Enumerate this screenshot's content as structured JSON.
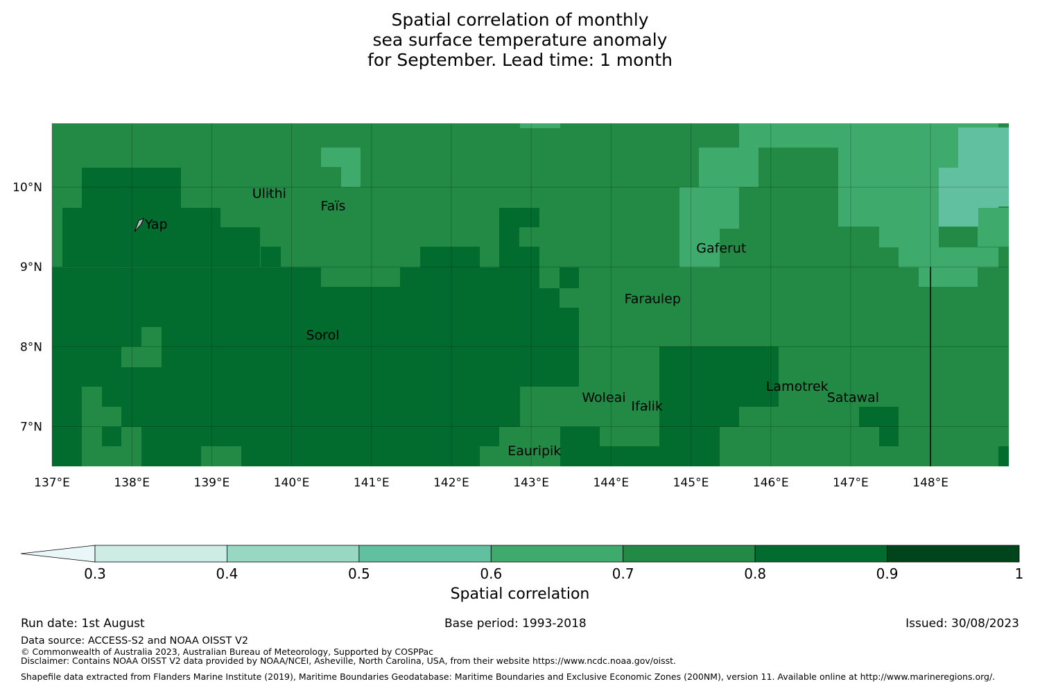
{
  "title": {
    "line1": "Spatial correlation of monthly",
    "line2": "sea surface temperature anomaly",
    "line3": "for September. Lead time: 1 month"
  },
  "map": {
    "extent": {
      "lon": [
        137.0,
        148.98
      ],
      "lat": [
        6.5,
        10.8
      ]
    },
    "lon_ticks": [
      "137°E",
      "138°E",
      "139°E",
      "140°E",
      "141°E",
      "142°E",
      "143°E",
      "144°E",
      "145°E",
      "146°E",
      "147°E",
      "148°E"
    ],
    "lat_ticks": [
      "10°N",
      "9°N",
      "8°N",
      "7°N"
    ],
    "eez_boundary": {
      "lon": 148.0,
      "lat_from": 6.5,
      "lat_to": 9.0
    },
    "islands": [
      {
        "name": "Ulithi",
        "lon": 139.72,
        "lat": 9.92
      },
      {
        "name": "Faïs",
        "lon": 140.52,
        "lat": 9.76
      },
      {
        "name": "Yap",
        "lon": 138.13,
        "lat": 9.53
      },
      {
        "name": "Gaferut",
        "lon": 145.38,
        "lat": 9.23
      },
      {
        "name": "Faraulep",
        "lon": 144.52,
        "lat": 8.6
      },
      {
        "name": "Sorol",
        "lon": 140.39,
        "lat": 8.14
      },
      {
        "name": "Woleai",
        "lon": 143.91,
        "lat": 7.36
      },
      {
        "name": "Ifalik",
        "lon": 144.45,
        "lat": 7.25
      },
      {
        "name": "Lamotrek",
        "lon": 146.33,
        "lat": 7.5
      },
      {
        "name": "Satawal",
        "lon": 147.03,
        "lat": 7.36
      },
      {
        "name": "Eauripik",
        "lon": 143.04,
        "lat": 6.69
      }
    ]
  },
  "colorbar": {
    "label": "Spatial correlation",
    "ticks": [
      "0.3",
      "0.4",
      "0.5",
      "0.6",
      "0.7",
      "0.8",
      "0.9",
      "1"
    ],
    "extend_color": "#eaf7f8",
    "colors": [
      "#ccece4",
      "#98d7c2",
      "#61c0a0",
      "#3eaa6c",
      "#228a45",
      "#016c2d",
      "#00441b"
    ]
  },
  "footer": {
    "run_date": "Run date: 1st August",
    "base_period": "Base period: 1993-2018",
    "issued": "Issued: 30/08/2023",
    "data_source": "Data source: ACCESS-S2 and NOAA OISST V2",
    "copyright": "© Commonwealth of Australia 2023, Australian Bureau of Meteorology, Supported by COSPPac",
    "disclaimer": "Disclaimer: Contains NOAA OISST V2 data provided by NOAA/NCEI, Asheville, North Carolina, USA, from their website https://www.ncdc.noaa.gov/oisst.",
    "shapefile": "Shapefile data extracted from Flanders Marine Institute (2019), Maritime Boundaries Geodatabase: Maritime Boundaries and Exclusive Economic Zones (200NM), version 11. Available online at http://www.marineregions.org/."
  }
}
